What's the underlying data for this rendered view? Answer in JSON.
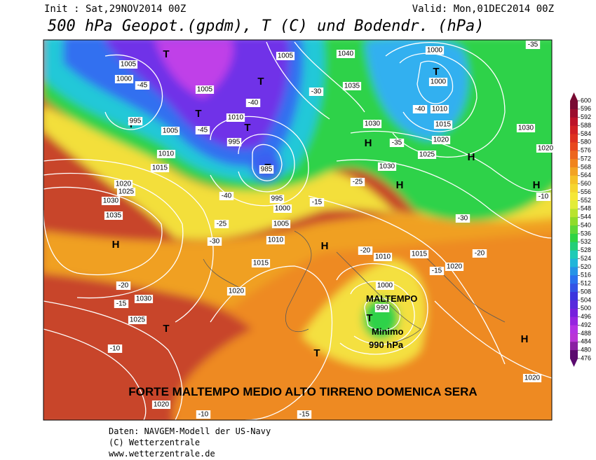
{
  "header": {
    "init": "Init : Sat,29NOV2014 00Z",
    "valid": "Valid: Mon,01DEC2014 00Z",
    "title": "500 hPa Geopot.(gpdm), T (C) und Bodendr. (hPa)"
  },
  "map": {
    "labels": [
      "H",
      "H",
      "H",
      "H",
      "H",
      "H",
      "H",
      "T",
      "T",
      "T",
      "T",
      "T",
      "T",
      "T",
      "T",
      "T",
      "T",
      "1005",
      "1005",
      "1005",
      "1005",
      "1005",
      "1000",
      "1000",
      "1000",
      "1000",
      "995",
      "995",
      "995",
      "1010",
      "1010",
      "1010",
      "1010",
      "1010",
      "1015",
      "1015",
      "1015",
      "1015",
      "1020",
      "1020",
      "1020",
      "1020",
      "1020",
      "1025",
      "1025",
      "1025",
      "1030",
      "1030",
      "1030",
      "1030",
      "1030",
      "1035",
      "1035",
      "1040",
      "990",
      "985",
      "1000",
      "1020",
      "1020",
      "-45",
      "-45",
      "-40",
      "-40",
      "-40",
      "-35",
      "-35",
      "-30",
      "-30",
      "-30",
      "-25",
      "-25",
      "-20",
      "-20",
      "-20",
      "-15",
      "-15",
      "-15",
      "-15",
      "-10",
      "-10",
      "-10"
    ]
  },
  "annotations": {
    "maltempo": "MALTEMPO",
    "minimo": "Minimo",
    "pressure": "990 hPa",
    "headline": "FORTE MALTEMPO MEDIO ALTO TIRRENO DOMENICA SERA"
  },
  "colorbar": {
    "ticks": [
      600,
      596,
      592,
      588,
      584,
      580,
      576,
      572,
      568,
      564,
      560,
      556,
      552,
      548,
      544,
      540,
      536,
      532,
      528,
      524,
      520,
      516,
      512,
      508,
      504,
      500,
      496,
      492,
      488,
      484,
      480,
      476
    ]
  },
  "footer": [
    "Daten: NAVGEM-Modell der US-Navy",
    "(C) Wetterzentrale",
    "www.wetterzentrale.de"
  ]
}
